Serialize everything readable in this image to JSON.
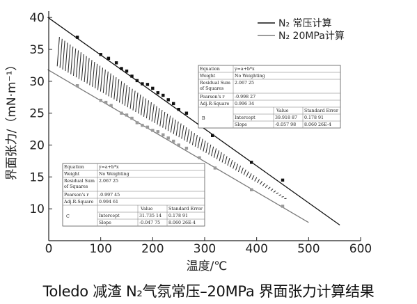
{
  "caption": "Toledo 减渣 N₂气氛常压–20MPa 界面张力计算结果",
  "chart_data": {
    "type": "scatter",
    "xlabel": "温度/℃",
    "ylabel": "界面张力/（mN·m⁻¹）",
    "xlim": [
      0,
      600
    ],
    "ylim": [
      5,
      41
    ],
    "xticks": [
      0,
      100,
      200,
      300,
      400,
      500,
      600
    ],
    "yticks": [
      10,
      15,
      20,
      25,
      30,
      35,
      40
    ],
    "legend_position": "top-right",
    "series": [
      {
        "name": "N₂ 常压计算",
        "color": "#111111",
        "x": [
          55,
          100,
          115,
          130,
          140,
          150,
          160,
          170,
          180,
          190,
          200,
          210,
          220,
          230,
          240,
          250,
          265,
          315,
          390,
          450
        ],
        "y": [
          36.9,
          34.2,
          33.6,
          32.9,
          32.0,
          31.6,
          30.8,
          30.1,
          29.6,
          29.5,
          28.9,
          28.2,
          27.8,
          27.1,
          26.5,
          25.6,
          25.0,
          21.5,
          17.3,
          14.5
        ],
        "fit": {
          "intercept": 39.91887,
          "slope": -0.05798,
          "x_range": [
            -2,
            560
          ]
        }
      },
      {
        "name": "N₂ 20MPa计算",
        "color": "#7a7a7a",
        "x": [
          55,
          100,
          110,
          120,
          140,
          150,
          160,
          170,
          180,
          190,
          200,
          210,
          220,
          230,
          240,
          250,
          265,
          290,
          320,
          390,
          450
        ],
        "y": [
          29.3,
          27.0,
          26.7,
          26.2,
          25.0,
          24.7,
          24.2,
          23.5,
          23.1,
          22.8,
          22.3,
          22.1,
          21.6,
          21.1,
          20.6,
          20.0,
          19.5,
          18.0,
          16.4,
          13.0,
          10.4
        ],
        "fit": {
          "intercept": 31.73514,
          "slope": -0.04775,
          "x_range": [
            -2,
            500
          ]
        }
      }
    ],
    "band": {
      "x_start": 18,
      "x_end": 515,
      "upper_intercept": 38.0,
      "upper_slope": -0.058,
      "lower_intercept": 33.2,
      "lower_slope": -0.0475
    }
  },
  "stats_tables": [
    {
      "rows": [
        [
          "Equation",
          "y=a+b*x"
        ],
        [
          "Weight",
          "No Weighting"
        ],
        [
          "Residual Sum of Squares",
          "2.067 25"
        ],
        [
          "Pearson's r",
          "-0.998 27"
        ],
        [
          "Adj.R-Square",
          "0.996 34"
        ]
      ],
      "value_header": "Value",
      "error_header": "Standard Error",
      "series_letter": "B",
      "params": [
        [
          "Intercept",
          "39.918 87",
          "0.178 91"
        ],
        [
          "Slope",
          "-0.057 98",
          "8.060 26E-4"
        ]
      ]
    },
    {
      "rows": [
        [
          "Equation",
          "y=a+b*x"
        ],
        [
          "Weight",
          "No Weighting"
        ],
        [
          "Residual Sum of Squares",
          "2.067 25"
        ],
        [
          "Pearson's r",
          "-0.997 45"
        ],
        [
          "Adj.R-Square",
          "0.994 61"
        ]
      ],
      "value_header": "Value",
      "error_header": "Standard Error",
      "series_letter": "C",
      "params": [
        [
          "Intercept",
          "31.735 14",
          "0.178 91"
        ],
        [
          "Slope",
          "-0.047 75",
          "8.060 26E-4"
        ]
      ]
    }
  ]
}
